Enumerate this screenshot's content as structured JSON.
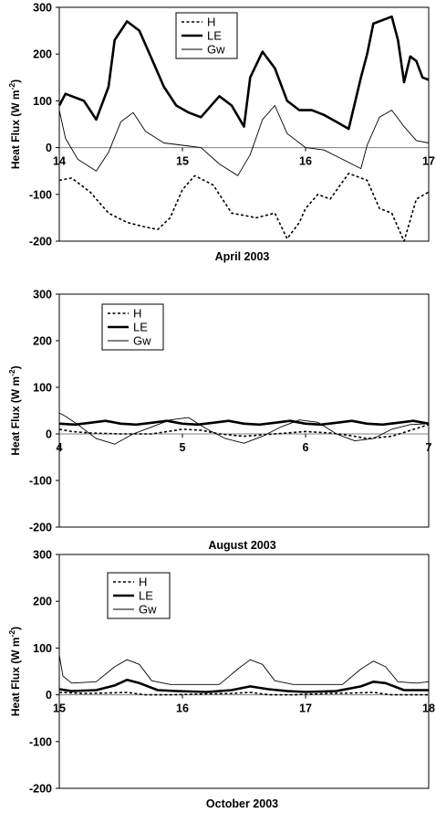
{
  "chart_data": [
    {
      "type": "line",
      "xlabel": "April 2003",
      "ylabel": "Heat Flux (W m-2)",
      "xlim": [
        14,
        17
      ],
      "ylim": [
        -200,
        300
      ],
      "xticks": [
        "14",
        "15",
        "16",
        "17"
      ],
      "yticks": [
        "300",
        "200",
        "100",
        "0",
        "-100",
        "-200"
      ],
      "zero_line": true,
      "legend_position": "top-center",
      "series": [
        {
          "name": "H",
          "style": "dotted",
          "x": [
            14.0,
            14.1,
            14.25,
            14.4,
            14.55,
            14.7,
            14.8,
            14.9,
            15.0,
            15.1,
            15.25,
            15.4,
            15.5,
            15.6,
            15.75,
            15.85,
            15.95,
            16.0,
            16.1,
            16.2,
            16.35,
            16.5,
            16.6,
            16.7,
            16.8,
            16.9,
            17.0
          ],
          "y": [
            -70,
            -65,
            -95,
            -140,
            -160,
            -170,
            -175,
            -150,
            -90,
            -60,
            -80,
            -140,
            -145,
            -150,
            -140,
            -195,
            -160,
            -130,
            -100,
            -110,
            -55,
            -70,
            -130,
            -140,
            -200,
            -110,
            -95
          ]
        },
        {
          "name": "LE",
          "style": "thick",
          "x": [
            14.0,
            14.05,
            14.2,
            14.3,
            14.4,
            14.45,
            14.55,
            14.65,
            14.75,
            14.85,
            14.95,
            15.05,
            15.15,
            15.3,
            15.4,
            15.5,
            15.55,
            15.65,
            15.75,
            15.85,
            15.95,
            16.05,
            16.15,
            16.25,
            16.35,
            16.45,
            16.5,
            16.55,
            16.7,
            16.75,
            16.8,
            16.85,
            16.9,
            16.95,
            17.0
          ],
          "y": [
            90,
            115,
            100,
            60,
            130,
            230,
            270,
            250,
            190,
            130,
            90,
            75,
            65,
            110,
            90,
            45,
            150,
            205,
            170,
            100,
            80,
            80,
            70,
            55,
            40,
            150,
            200,
            265,
            280,
            230,
            140,
            195,
            185,
            150,
            145
          ]
        },
        {
          "name": "Gw",
          "style": "thin",
          "x": [
            14.0,
            14.05,
            14.15,
            14.3,
            14.4,
            14.5,
            14.6,
            14.7,
            14.85,
            15.0,
            15.15,
            15.3,
            15.45,
            15.55,
            15.65,
            15.75,
            15.85,
            16.0,
            16.15,
            16.3,
            16.45,
            16.5,
            16.6,
            16.7,
            16.8,
            16.9,
            17.0
          ],
          "y": [
            80,
            20,
            -25,
            -50,
            -10,
            55,
            75,
            35,
            10,
            5,
            0,
            -35,
            -60,
            -15,
            60,
            90,
            30,
            0,
            -5,
            -25,
            -45,
            5,
            65,
            80,
            45,
            15,
            10
          ]
        }
      ]
    },
    {
      "type": "line",
      "xlabel": "August 2003",
      "ylabel": "Heat Flux (W m-2)",
      "xlim": [
        4,
        7
      ],
      "ylim": [
        -200,
        300
      ],
      "xticks": [
        "4",
        "5",
        "6",
        "7"
      ],
      "yticks": [
        "300",
        "200",
        "100",
        "0",
        "-100",
        "-200"
      ],
      "zero_line": true,
      "legend_position": "top-left",
      "series": [
        {
          "name": "H",
          "style": "dotted",
          "x": [
            4.0,
            4.1,
            4.25,
            4.5,
            4.75,
            5.0,
            5.15,
            5.3,
            5.5,
            5.75,
            6.0,
            6.2,
            6.35,
            6.5,
            6.7,
            7.0
          ],
          "y": [
            10,
            5,
            2,
            0,
            0,
            10,
            8,
            0,
            -5,
            0,
            5,
            2,
            -3,
            -10,
            -5,
            20
          ]
        },
        {
          "name": "LE",
          "style": "thick",
          "x": [
            4.0,
            4.125,
            4.25,
            4.375,
            4.5,
            4.625,
            4.75,
            4.875,
            5.0,
            5.125,
            5.25,
            5.375,
            5.5,
            5.625,
            5.75,
            5.875,
            6.0,
            6.125,
            6.25,
            6.375,
            6.5,
            6.625,
            6.75,
            6.875,
            7.0
          ],
          "y": [
            22,
            20,
            24,
            28,
            22,
            20,
            24,
            28,
            22,
            20,
            24,
            28,
            22,
            20,
            24,
            28,
            22,
            20,
            24,
            28,
            22,
            20,
            24,
            28,
            22
          ]
        },
        {
          "name": "Gw",
          "style": "thin",
          "x": [
            4.0,
            4.05,
            4.15,
            4.3,
            4.45,
            4.6,
            4.75,
            4.9,
            5.05,
            5.2,
            5.35,
            5.5,
            5.65,
            5.8,
            5.95,
            6.1,
            6.25,
            6.4,
            6.55,
            6.7,
            6.85,
            7.0
          ],
          "y": [
            45,
            38,
            20,
            -10,
            -22,
            0,
            15,
            30,
            35,
            10,
            -10,
            -20,
            -5,
            15,
            30,
            25,
            0,
            -15,
            -10,
            10,
            20,
            22
          ]
        }
      ]
    },
    {
      "type": "line",
      "xlabel": "October 2003",
      "ylabel": "Heat Flux (W m-2)",
      "xlim": [
        15,
        18
      ],
      "ylim": [
        -200,
        300
      ],
      "xticks": [
        "15",
        "16",
        "17",
        "18"
      ],
      "yticks": [
        "300",
        "200",
        "100",
        "0",
        "-100",
        "-200"
      ],
      "zero_line": true,
      "legend_position": "top-left",
      "series": [
        {
          "name": "H",
          "style": "dotted",
          "x": [
            15.0,
            15.2,
            15.4,
            15.55,
            15.7,
            15.9,
            16.2,
            16.4,
            16.55,
            16.7,
            16.9,
            17.2,
            17.4,
            17.55,
            17.7,
            17.9,
            18.0
          ],
          "y": [
            5,
            3,
            4,
            5,
            0,
            0,
            2,
            3,
            5,
            0,
            0,
            3,
            4,
            5,
            0,
            0,
            0
          ]
        },
        {
          "name": "LE",
          "style": "thick",
          "x": [
            15.0,
            15.1,
            15.3,
            15.45,
            15.55,
            15.65,
            15.8,
            15.95,
            16.2,
            16.4,
            16.55,
            16.7,
            16.85,
            17.0,
            17.25,
            17.45,
            17.55,
            17.65,
            17.8,
            17.95,
            18.0
          ],
          "y": [
            12,
            8,
            10,
            20,
            32,
            25,
            10,
            8,
            6,
            10,
            18,
            12,
            8,
            6,
            8,
            18,
            28,
            25,
            10,
            10,
            10
          ]
        },
        {
          "name": "Gw",
          "style": "thin",
          "x": [
            15.0,
            15.03,
            15.1,
            15.3,
            15.45,
            15.55,
            15.65,
            15.75,
            15.9,
            16.1,
            16.3,
            16.45,
            16.55,
            16.65,
            16.75,
            16.9,
            17.1,
            17.3,
            17.45,
            17.55,
            17.65,
            17.75,
            17.9,
            18.0
          ],
          "y": [
            85,
            40,
            25,
            28,
            60,
            75,
            65,
            30,
            22,
            22,
            22,
            55,
            75,
            65,
            30,
            22,
            22,
            22,
            55,
            72,
            60,
            28,
            25,
            28
          ]
        }
      ]
    }
  ]
}
